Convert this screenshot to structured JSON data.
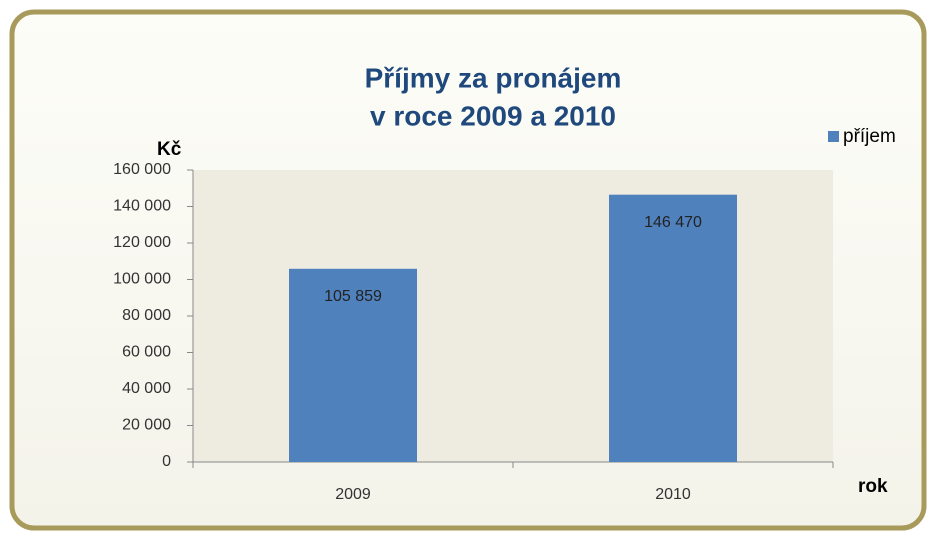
{
  "chart_data": {
    "type": "bar",
    "title": [
      "Příjmy za pronájem",
      "v roce 2009 a 2010"
    ],
    "y_label": "Kč",
    "x_label": "rok",
    "categories": [
      "2009",
      "2010"
    ],
    "series": [
      {
        "name": "příjem",
        "color": "#4f81bd",
        "values": [
          105859,
          146470
        ],
        "value_labels": [
          "105 859",
          "146 470"
        ]
      }
    ],
    "ylim": [
      0,
      160000
    ],
    "yticks": [
      0,
      {
        "value": 20000,
        "label": "20 000"
      },
      {
        "value": 40000,
        "label": "40 000"
      },
      {
        "value": 60000,
        "label": "60 000"
      },
      {
        "value": 80000,
        "label": "80 000"
      },
      {
        "value": 100000,
        "label": "100 000"
      },
      {
        "value": 120000,
        "label": "120 000"
      },
      {
        "value": 140000,
        "label": "140 000"
      },
      {
        "value": 160000,
        "label": "160 000"
      }
    ],
    "legend": "top-right"
  }
}
